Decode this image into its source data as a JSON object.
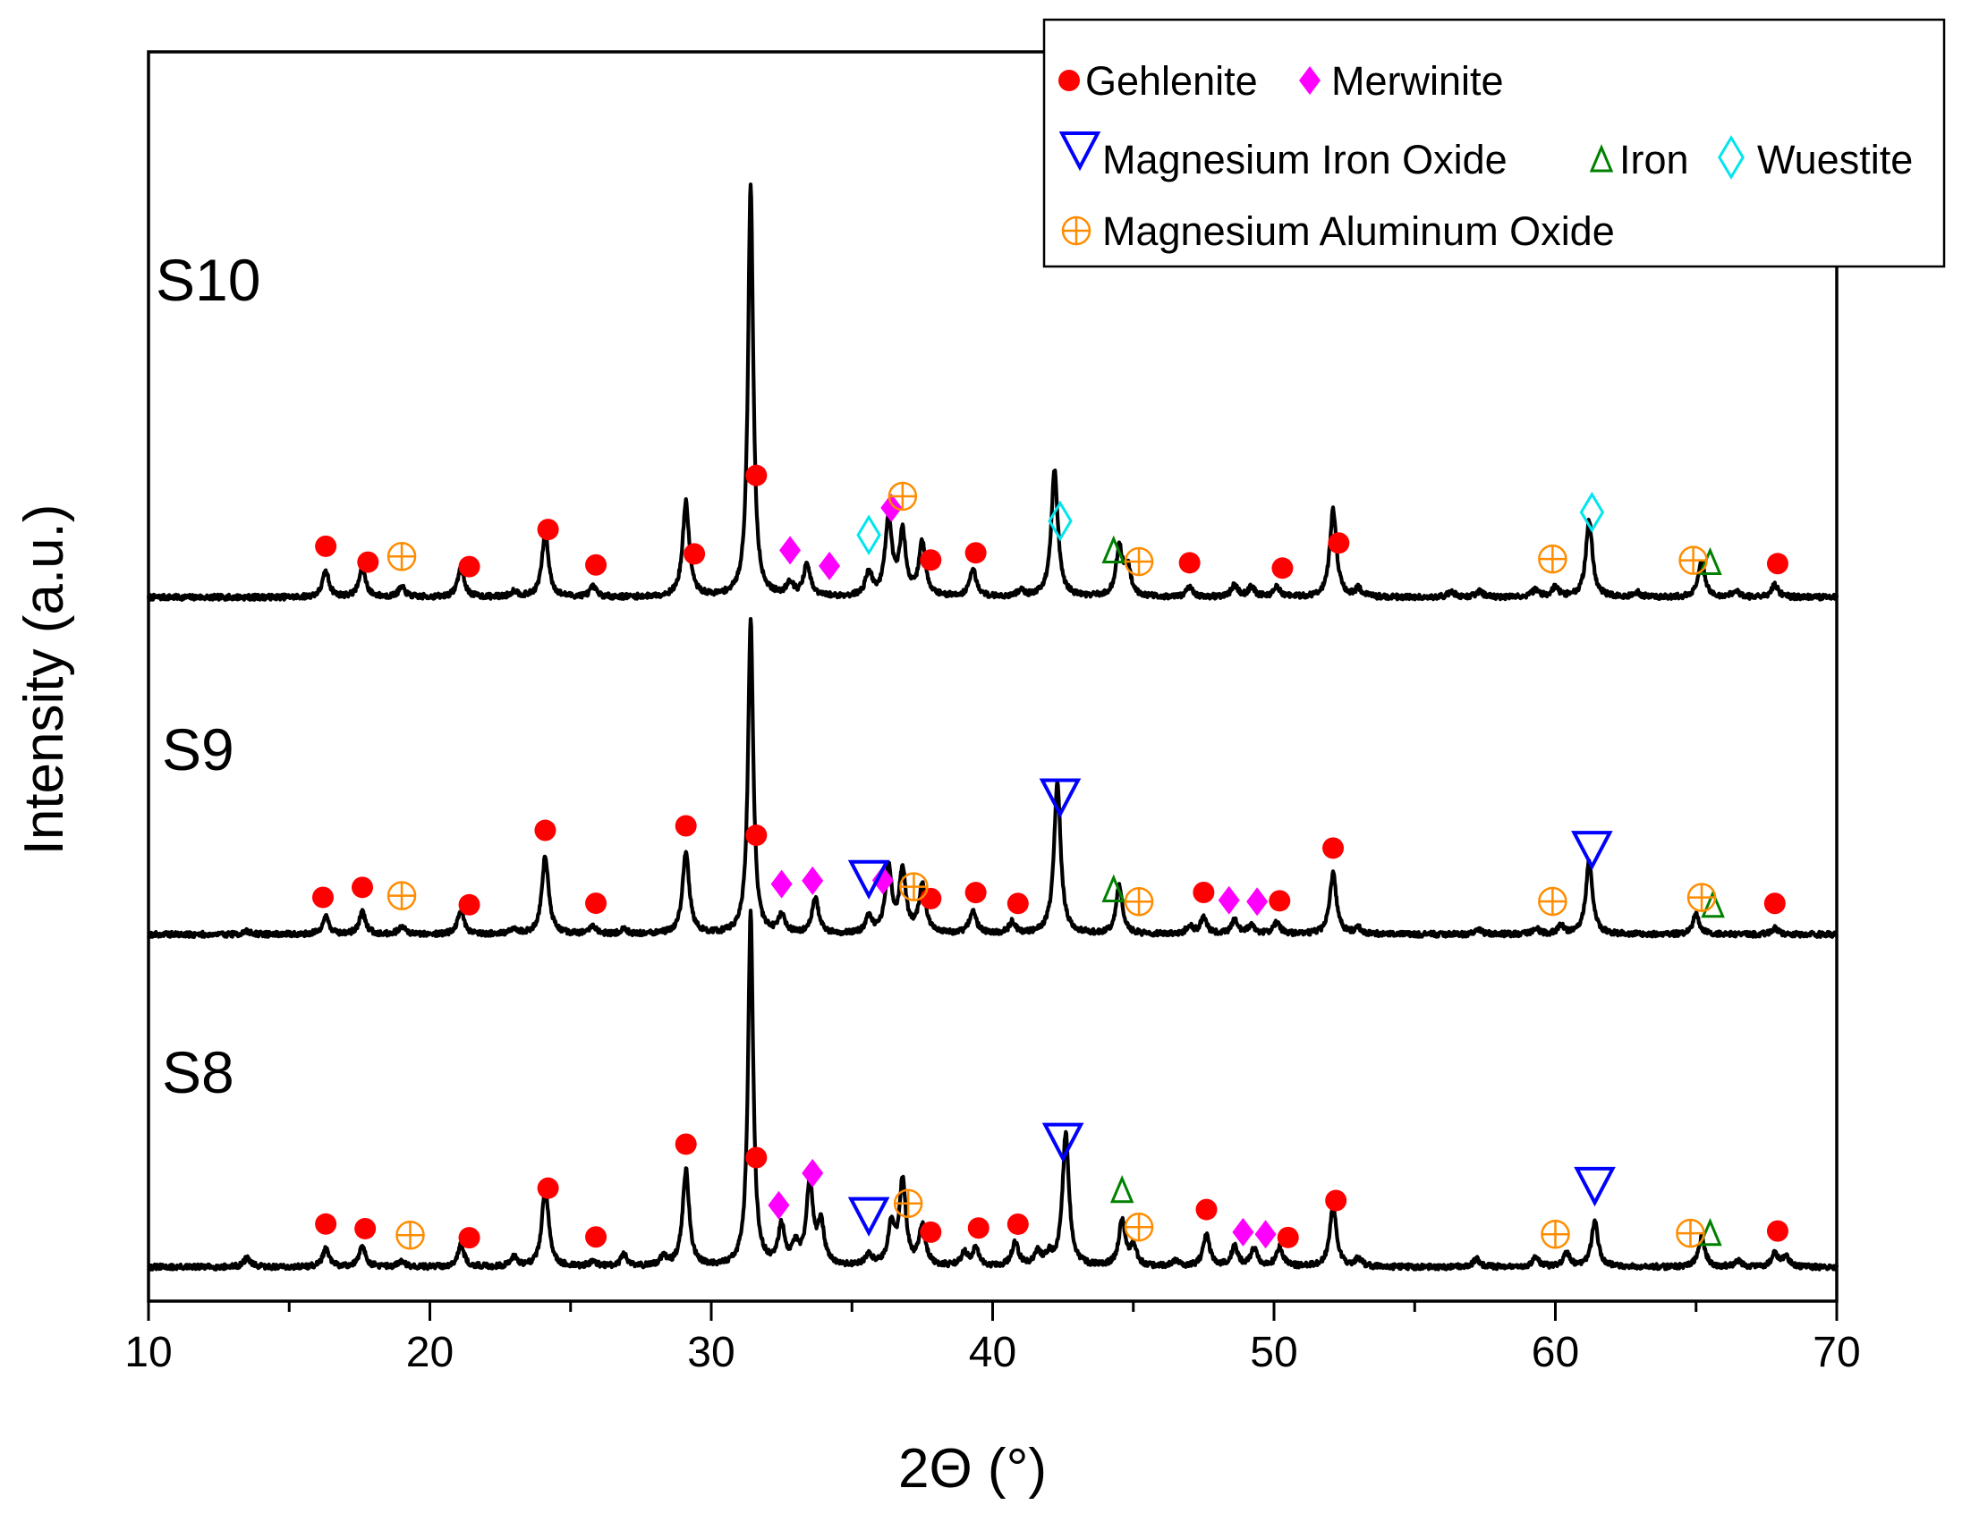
{
  "chart_data": {
    "type": "line",
    "title": "",
    "xlabel": "2Θ (°)",
    "ylabel": "Intensity (a.u.)",
    "xlim": [
      10,
      70
    ],
    "xticks": [
      "10",
      "20",
      "30",
      "40",
      "50",
      "60",
      "70"
    ],
    "yaxis_ticks": "none (arbitrary units, patterns vertically offset)",
    "grid": false,
    "legend_position": "top-right",
    "legend": [
      {
        "key": "gehlenite",
        "label": "Gehlenite",
        "color": "#ff0000"
      },
      {
        "key": "merwinite",
        "label": "Merwinite",
        "color": "#ff00ff"
      },
      {
        "key": "mgfeo",
        "label": "Magnesium Iron Oxide",
        "color": "#0000ff"
      },
      {
        "key": "iron",
        "label": "Iron",
        "color": "#008000"
      },
      {
        "key": "wuestite",
        "label": "Wuestite",
        "color": "#00e5ee"
      },
      {
        "key": "mgalo",
        "label": "Magnesium Aluminum Oxide",
        "color": "#ff8c00"
      }
    ],
    "series": [
      {
        "name": "S10",
        "peaks": [
          [
            16.3,
            2.6
          ],
          [
            17.6,
            3.0
          ],
          [
            19.0,
            1.0
          ],
          [
            21.1,
            3.0
          ],
          [
            23.0,
            0.6
          ],
          [
            24.1,
            6.5
          ],
          [
            25.8,
            1.0
          ],
          [
            29.1,
            9.6
          ],
          [
            31.4,
            42.0
          ],
          [
            32.8,
            1.4
          ],
          [
            33.4,
            3.2
          ],
          [
            35.6,
            2.4
          ],
          [
            36.3,
            8.0
          ],
          [
            36.8,
            6.3
          ],
          [
            37.5,
            5.5
          ],
          [
            39.3,
            2.8
          ],
          [
            41.0,
            0.6
          ],
          [
            42.2,
            12.9
          ],
          [
            44.5,
            4.8
          ],
          [
            44.8,
            2.8
          ],
          [
            47.0,
            0.9
          ],
          [
            48.6,
            1.2
          ],
          [
            49.2,
            1.0
          ],
          [
            50.1,
            1.0
          ],
          [
            52.1,
            8.9
          ],
          [
            53.0,
            0.8
          ],
          [
            56.3,
            0.6
          ],
          [
            57.3,
            0.6
          ],
          [
            59.3,
            0.8
          ],
          [
            60.0,
            1.0
          ],
          [
            61.2,
            7.8
          ],
          [
            62.9,
            0.5
          ],
          [
            65.2,
            3.6
          ],
          [
            66.4,
            0.6
          ],
          [
            67.8,
            1.3
          ]
        ]
      },
      {
        "name": "S9",
        "peaks": [
          [
            13.5,
            0.3
          ],
          [
            16.3,
            1.8
          ],
          [
            17.6,
            2.2
          ],
          [
            19.0,
            0.8
          ],
          [
            21.1,
            2.4
          ],
          [
            23.0,
            0.5
          ],
          [
            24.1,
            8.0
          ],
          [
            25.8,
            0.8
          ],
          [
            26.9,
            0.5
          ],
          [
            29.1,
            8.4
          ],
          [
            31.4,
            32.0
          ],
          [
            32.5,
            1.8
          ],
          [
            33.7,
            3.6
          ],
          [
            35.6,
            1.6
          ],
          [
            36.3,
            6.5
          ],
          [
            36.8,
            6.3
          ],
          [
            37.5,
            4.8
          ],
          [
            39.3,
            2.4
          ],
          [
            40.7,
            1.2
          ],
          [
            42.3,
            15.5
          ],
          [
            44.5,
            4.8
          ],
          [
            47.0,
            0.8
          ],
          [
            47.5,
            1.6
          ],
          [
            48.6,
            1.4
          ],
          [
            49.2,
            0.9
          ],
          [
            50.1,
            1.2
          ],
          [
            52.1,
            6.2
          ],
          [
            53.0,
            0.6
          ],
          [
            57.3,
            0.4
          ],
          [
            59.3,
            0.6
          ],
          [
            60.2,
            0.8
          ],
          [
            61.2,
            7.5
          ],
          [
            65.0,
            2.0
          ],
          [
            67.8,
            0.6
          ]
        ]
      },
      {
        "name": "S8",
        "peaks": [
          [
            13.5,
            0.9
          ],
          [
            16.3,
            1.8
          ],
          [
            17.6,
            2.0
          ],
          [
            19.0,
            0.6
          ],
          [
            21.1,
            2.2
          ],
          [
            23.0,
            1.0
          ],
          [
            24.1,
            8.2
          ],
          [
            25.8,
            0.6
          ],
          [
            26.9,
            1.2
          ],
          [
            28.3,
            1.0
          ],
          [
            29.1,
            9.8
          ],
          [
            31.4,
            36.0
          ],
          [
            32.5,
            4.0
          ],
          [
            33.0,
            1.8
          ],
          [
            33.5,
            8.5
          ],
          [
            33.9,
            4.0
          ],
          [
            35.6,
            1.2
          ],
          [
            36.8,
            8.5
          ],
          [
            36.4,
            4.0
          ],
          [
            37.5,
            4.0
          ],
          [
            39.0,
            1.3
          ],
          [
            39.4,
            1.8
          ],
          [
            40.8,
            2.4
          ],
          [
            41.6,
            1.4
          ],
          [
            42.0,
            1.0
          ],
          [
            42.6,
            13.5
          ],
          [
            44.6,
            4.6
          ],
          [
            45.0,
            2.0
          ],
          [
            46.5,
            0.6
          ],
          [
            47.6,
            3.2
          ],
          [
            48.6,
            2.0
          ],
          [
            49.3,
            1.8
          ],
          [
            50.2,
            2.0
          ],
          [
            52.1,
            6.3
          ],
          [
            53.0,
            0.8
          ],
          [
            57.2,
            0.8
          ],
          [
            59.3,
            1.0
          ],
          [
            60.4,
            1.4
          ],
          [
            61.4,
            4.6
          ],
          [
            65.2,
            3.0
          ],
          [
            66.5,
            0.6
          ],
          [
            67.8,
            1.4
          ],
          [
            68.2,
            1.0
          ]
        ]
      }
    ],
    "annotations": [
      {
        "pattern": "S10",
        "phase": "gehlenite",
        "x": [
          16.3,
          17.8,
          21.4,
          24.2,
          25.9,
          29.4,
          31.6,
          37.8,
          39.4,
          47.0,
          50.3,
          52.3,
          67.9
        ]
      },
      {
        "pattern": "S10",
        "phase": "merwinite",
        "x": [
          32.8,
          34.2,
          36.4
        ]
      },
      {
        "pattern": "S10",
        "phase": "wuestite",
        "x": [
          35.6,
          42.4,
          61.3
        ]
      },
      {
        "pattern": "S10",
        "phase": "iron",
        "x": [
          44.3,
          65.5
        ]
      },
      {
        "pattern": "S10",
        "phase": "mgalo",
        "x": [
          19.0,
          36.8,
          45.2,
          59.9,
          64.9
        ]
      },
      {
        "pattern": "S9",
        "phase": "gehlenite",
        "x": [
          16.2,
          17.6,
          21.4,
          24.1,
          25.9,
          29.1,
          31.6,
          37.8,
          39.4,
          40.9,
          47.5,
          50.2,
          52.1,
          67.8
        ]
      },
      {
        "pattern": "S9",
        "phase": "merwinite",
        "x": [
          32.5,
          33.6,
          36.1,
          48.4,
          49.4
        ]
      },
      {
        "pattern": "S9",
        "phase": "mgfeo",
        "x": [
          35.6,
          42.4,
          61.3
        ]
      },
      {
        "pattern": "S9",
        "phase": "iron",
        "x": [
          44.3,
          65.6
        ]
      },
      {
        "pattern": "S9",
        "phase": "mgalo",
        "x": [
          19.0,
          37.2,
          45.2,
          59.9,
          65.2
        ]
      },
      {
        "pattern": "S8",
        "phase": "gehlenite",
        "x": [
          16.3,
          17.7,
          21.4,
          24.2,
          25.9,
          29.1,
          31.6,
          37.8,
          39.5,
          40.9,
          47.6,
          50.5,
          52.2,
          67.9
        ]
      },
      {
        "pattern": "S8",
        "phase": "merwinite",
        "x": [
          32.4,
          33.6,
          48.9,
          49.7
        ]
      },
      {
        "pattern": "S8",
        "phase": "mgfeo",
        "x": [
          35.6,
          42.5,
          61.4
        ]
      },
      {
        "pattern": "S8",
        "phase": "iron",
        "x": [
          44.6,
          65.5
        ]
      },
      {
        "pattern": "S8",
        "phase": "mgalo",
        "x": [
          19.3,
          37.0,
          45.2,
          60.0,
          64.8
        ]
      }
    ]
  }
}
